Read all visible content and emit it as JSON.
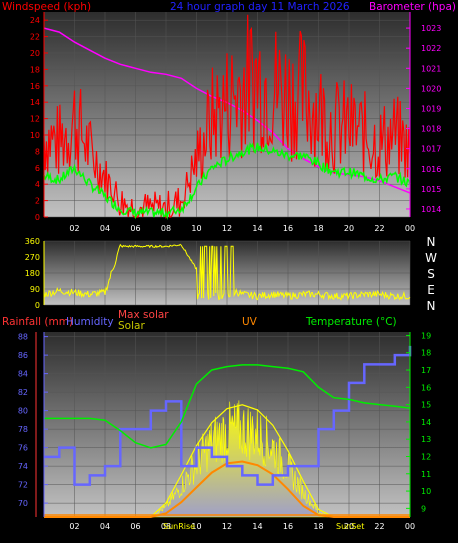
{
  "colors": {
    "wind": "#ff0000",
    "wind_avg": "#00ff00",
    "baro": "#ff00ff",
    "dir": "#ffff00",
    "rain": "#ff3333",
    "humidity": "#6666ff",
    "maxsolar": "#ff4444",
    "solar": "#ffff00",
    "uv": "#ff8800",
    "temp": "#00ee00",
    "title": "#2222ff",
    "axis_dir": "#ffffff"
  },
  "panel1": {
    "title": "24 hour graph day  11 March 2026",
    "left_label": "Windspeed (kph)",
    "right_label": "Barometer (hpa)",
    "left_ticks": [
      "0",
      "2",
      "4",
      "6",
      "8",
      "10",
      "12",
      "14",
      "16",
      "18",
      "20",
      "22",
      "24"
    ],
    "right_ticks": [
      "1014",
      "1015",
      "1016",
      "1017",
      "1018",
      "1019",
      "1020",
      "1021",
      "1022",
      "1023"
    ],
    "x_ticks": [
      "02",
      "04",
      "06",
      "08",
      "10",
      "12",
      "14",
      "16",
      "18",
      "20",
      "22",
      "00"
    ]
  },
  "panel2": {
    "left_ticks": [
      "0",
      "90",
      "180",
      "270",
      "360"
    ],
    "dir_labels": [
      "N",
      "W",
      "S",
      "E",
      "N"
    ]
  },
  "panel3": {
    "labels": {
      "rainfall": "Rainfall (mm)",
      "humidity": "Humidity",
      "max_solar": "Max solar",
      "solar": "Solar",
      "uv": "UV",
      "temperature": "Temperature (°C)"
    },
    "left_ticks": [
      "70",
      "72",
      "74",
      "76",
      "78",
      "80",
      "82",
      "84",
      "86",
      "88"
    ],
    "right_ticks": [
      "9",
      "10",
      "11",
      "12",
      "13",
      "14",
      "15",
      "16",
      "17",
      "18",
      "19"
    ],
    "x_ticks": [
      "02",
      "04",
      "06",
      "08",
      "10",
      "12",
      "14",
      "16",
      "18",
      "20",
      "22",
      "00"
    ],
    "sunrise": "SunRise",
    "sunset": "SunSet"
  },
  "chart_data": [
    {
      "type": "line",
      "title": "24 hour graph day  11 March 2026",
      "x_unit": "hour of day (0-24)",
      "ylabel": "Windspeed (kph)",
      "ylim": [
        0,
        25
      ],
      "y2label": "Barometer (hpa)",
      "y2lim": [
        1013.6,
        1023.8
      ],
      "x": [
        0,
        1,
        2,
        3,
        4,
        5,
        6,
        7,
        8,
        9,
        10,
        11,
        12,
        13,
        14,
        15,
        16,
        17,
        18,
        19,
        20,
        21,
        22,
        23,
        24
      ],
      "series": [
        {
          "name": "Windspeed (kph)",
          "values": [
            10,
            9,
            12,
            8,
            5,
            2,
            1,
            1,
            1,
            2,
            7,
            12,
            14,
            16,
            17,
            16,
            15,
            15,
            13,
            11,
            11,
            10,
            9,
            10,
            8
          ]
        },
        {
          "name": "Barometer (hpa)",
          "values": [
            1023,
            1022.8,
            1022.3,
            1021.9,
            1021.5,
            1021.2,
            1021.0,
            1020.8,
            1020.7,
            1020.5,
            1020.0,
            1019.6,
            1019.3,
            1018.9,
            1018.4,
            1017.8,
            1017.0,
            1016.5,
            1016.1,
            1015.8,
            1015.7,
            1015.6,
            1015.4,
            1015.1,
            1014.8
          ]
        }
      ]
    },
    {
      "type": "scatter",
      "ylabel": "Wind direction (degrees)",
      "ylim": [
        0,
        360
      ],
      "x": [
        0,
        1,
        2,
        3,
        4,
        5,
        6,
        7,
        8,
        9,
        10,
        11,
        12,
        13,
        14,
        15,
        16,
        17,
        18,
        19,
        20,
        21,
        22,
        23,
        24
      ],
      "values": [
        60,
        80,
        70,
        60,
        70,
        330,
        330,
        330,
        330,
        340,
        200,
        60,
        100,
        60,
        50,
        60,
        50,
        60,
        60,
        50,
        50,
        60,
        60,
        50,
        50
      ]
    },
    {
      "type": "line",
      "ylabel": "Humidity",
      "ylim": [
        68.5,
        88.5
      ],
      "y2label": "Temperature (°C)",
      "y2lim": [
        8.5,
        19.2
      ],
      "x": [
        0,
        1,
        2,
        3,
        4,
        5,
        6,
        7,
        8,
        9,
        10,
        11,
        12,
        13,
        14,
        15,
        16,
        17,
        18,
        19,
        20,
        21,
        22,
        23,
        24
      ],
      "series": [
        {
          "name": "Humidity",
          "values": [
            75,
            76,
            72,
            73,
            74,
            78,
            78,
            80,
            81,
            74,
            76,
            75,
            74,
            73,
            72,
            73,
            74,
            74,
            78,
            80,
            83,
            85,
            85,
            86,
            87
          ]
        },
        {
          "name": "Temperature (°C)",
          "values": [
            14.2,
            14.2,
            14.2,
            14.2,
            14.1,
            13.5,
            12.8,
            12.5,
            12.7,
            14.0,
            16.2,
            17.0,
            17.2,
            17.3,
            17.3,
            17.2,
            17.1,
            16.9,
            16.0,
            15.4,
            15.3,
            15.1,
            15.0,
            14.9,
            14.8
          ]
        },
        {
          "name": "Max solar",
          "values": [
            0,
            0,
            0,
            0,
            0,
            0,
            0,
            0,
            110,
            330,
            560,
            740,
            850,
            880,
            840,
            720,
            520,
            280,
            60,
            0,
            0,
            0,
            0,
            0,
            0
          ]
        },
        {
          "name": "Solar",
          "values": [
            0,
            0,
            0,
            0,
            0,
            0,
            0,
            0,
            90,
            280,
            500,
            690,
            790,
            810,
            770,
            650,
            450,
            230,
            40,
            0,
            0,
            0,
            0,
            0,
            0
          ]
        },
        {
          "name": "UV",
          "values": [
            0,
            0,
            0,
            0,
            0,
            0,
            0,
            0,
            0.2,
            0.8,
            1.6,
            2.4,
            2.9,
            3.0,
            2.8,
            2.3,
            1.5,
            0.6,
            0.1,
            0,
            0,
            0,
            0,
            0,
            0
          ]
        },
        {
          "name": "Rainfall (mm)",
          "values": [
            0,
            0,
            0,
            0,
            0,
            0,
            0,
            0,
            0,
            0,
            0,
            0,
            0,
            0,
            0,
            0,
            0,
            0,
            0,
            0,
            0,
            0,
            0,
            0,
            0
          ]
        }
      ]
    }
  ]
}
